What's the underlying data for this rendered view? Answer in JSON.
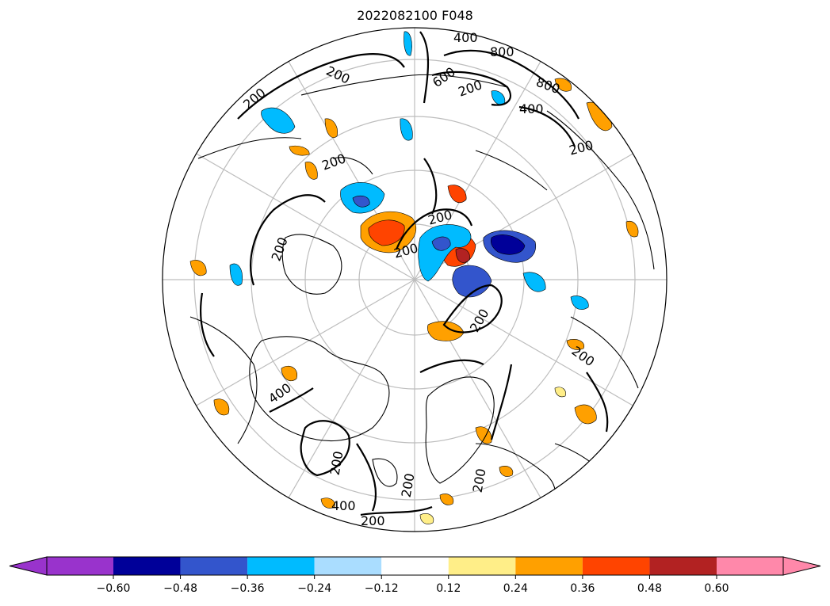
{
  "title": "2022082100 F048",
  "map": {
    "projection": "north-polar-stereographic",
    "contour_labels": [
      "400",
      "800",
      "600",
      "200",
      "200",
      "200",
      "800",
      "400",
      "200",
      "200",
      "200",
      "200",
      "200",
      "200",
      "200",
      "400",
      "200",
      "400",
      "200",
      "200",
      "200"
    ],
    "shading_colors": {
      "neg_extreme": "#9933cc",
      "neg_048_060": "#000099",
      "neg_036_048": "#3355cc",
      "neg_024_036": "#00bbff",
      "neg_012_024": "#aaddff",
      "pos_012_024": "#ffee88",
      "pos_024_036": "#ffa000",
      "pos_036_048": "#ff4400",
      "pos_048_060": "#b22222",
      "pos_extreme": "#ff88aa"
    }
  },
  "colorbar": {
    "colors": [
      "#9933cc",
      "#000099",
      "#3355cc",
      "#00bbff",
      "#aaddff",
      "#ffffff",
      "#ffee88",
      "#ffa000",
      "#ff4400",
      "#b22222",
      "#ff88aa"
    ],
    "ticks": [
      "−0.60",
      "−0.48",
      "−0.36",
      "−0.24",
      "−0.12",
      "0.12",
      "0.24",
      "0.36",
      "0.48",
      "0.60"
    ]
  }
}
